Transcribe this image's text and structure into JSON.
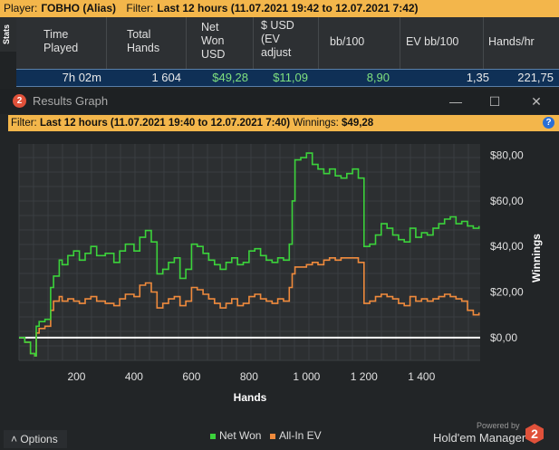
{
  "topbar": {
    "player_label": "Player:",
    "player_name": "ГОВНО (Alias)",
    "filter_label": "Filter:",
    "filter_value": "Last 12 hours (11.07.2021 19:42 to 12.07.2021 7:42)"
  },
  "stats": {
    "tab_label": "Stats",
    "headers": [
      "Time\nPlayed",
      "Total\nHands",
      "Net\nWon\nUSD",
      "$ USD\n(EV\nadjust",
      "bb/100",
      "EV bb/100",
      "Hands/hr"
    ],
    "row": [
      "7h 02m",
      "1 604",
      "$49,28",
      "$11,09",
      "8,90",
      "1,35",
      "221,75"
    ]
  },
  "graph_window": {
    "title": "Results Graph",
    "filter_label": "Filter:",
    "filter_value": "Last 12 hours (11.07.2021 19:40 to 12.07.2021 7:40)",
    "winnings_label": "Winnings:",
    "winnings_value": "$49,28",
    "minimize_icon": "minimize-icon",
    "maximize_icon": "maximize-icon",
    "close_icon": "close-icon",
    "help_icon": "help-icon"
  },
  "chart_data": {
    "type": "line",
    "xlabel": "Hands",
    "ylabel": "Winnings",
    "xlim": [
      0,
      1604
    ],
    "ylim": [
      -10,
      85
    ],
    "x_ticks": [
      200,
      400,
      600,
      800,
      1000,
      1200,
      1400
    ],
    "x_tick_labels": [
      "200",
      "400",
      "600",
      "800",
      "1 000",
      "1 200",
      "1 400"
    ],
    "y_ticks": [
      0,
      20,
      40,
      60,
      80
    ],
    "y_tick_labels": [
      "$0,00",
      "$20,00",
      "$40,00",
      "$60,00",
      "$80,00"
    ],
    "grid": true,
    "legend_position": "bottom",
    "series": [
      {
        "name": "Net Won",
        "color": "#3bd23b",
        "x": [
          0,
          20,
          40,
          55,
          60,
          70,
          90,
          110,
          120,
          140,
          150,
          170,
          190,
          210,
          230,
          250,
          270,
          300,
          330,
          350,
          370,
          400,
          420,
          440,
          460,
          480,
          500,
          520,
          540,
          560,
          580,
          600,
          620,
          640,
          660,
          680,
          700,
          720,
          740,
          760,
          780,
          800,
          820,
          840,
          860,
          880,
          900,
          920,
          940,
          950,
          960,
          980,
          1000,
          1020,
          1040,
          1060,
          1080,
          1100,
          1120,
          1140,
          1160,
          1180,
          1200,
          1220,
          1240,
          1260,
          1280,
          1300,
          1320,
          1340,
          1360,
          1380,
          1400,
          1420,
          1440,
          1460,
          1480,
          1500,
          1520,
          1540,
          1560,
          1580,
          1600
        ],
        "y": [
          0,
          -2,
          -7,
          -8,
          5,
          7,
          8,
          22,
          27,
          34,
          32,
          36,
          38,
          34,
          37,
          40,
          36,
          37,
          33,
          38,
          41,
          38,
          44,
          47,
          42,
          28,
          30,
          33,
          35,
          26,
          30,
          41,
          40,
          37,
          34,
          32,
          30,
          33,
          35,
          32,
          33,
          38,
          39,
          36,
          34,
          33,
          35,
          34,
          41,
          60,
          78,
          79,
          81,
          76,
          74,
          72,
          74,
          71,
          70,
          72,
          74,
          70,
          40,
          41,
          45,
          50,
          48,
          45,
          43,
          42,
          48,
          44,
          46,
          45,
          48,
          50,
          52,
          53,
          50,
          51,
          49,
          48,
          49
        ]
      },
      {
        "name": "All-In EV",
        "color": "#ef8a3c",
        "x": [
          0,
          20,
          40,
          55,
          60,
          70,
          90,
          110,
          120,
          140,
          150,
          170,
          190,
          210,
          230,
          250,
          270,
          300,
          330,
          350,
          370,
          400,
          420,
          440,
          460,
          480,
          500,
          520,
          540,
          560,
          580,
          600,
          620,
          640,
          660,
          680,
          700,
          720,
          740,
          760,
          780,
          800,
          820,
          840,
          860,
          880,
          900,
          920,
          940,
          950,
          960,
          980,
          1000,
          1020,
          1040,
          1060,
          1080,
          1100,
          1120,
          1140,
          1160,
          1180,
          1200,
          1220,
          1240,
          1260,
          1280,
          1300,
          1320,
          1340,
          1360,
          1380,
          1400,
          1420,
          1440,
          1460,
          1480,
          1500,
          1520,
          1540,
          1560,
          1580,
          1600
        ],
        "y": [
          0,
          -2,
          -7,
          -8,
          2,
          4,
          5,
          12,
          16,
          18,
          16,
          17,
          16,
          15,
          17,
          18,
          16,
          15,
          14,
          17,
          19,
          18,
          23,
          24,
          20,
          13,
          15,
          17,
          18,
          14,
          16,
          22,
          21,
          19,
          17,
          15,
          13,
          15,
          17,
          14,
          15,
          18,
          19,
          17,
          16,
          15,
          17,
          16,
          22,
          28,
          31,
          31,
          32,
          33,
          32,
          34,
          35,
          34,
          35,
          35,
          35,
          33,
          15,
          16,
          18,
          19,
          18,
          17,
          15,
          14,
          18,
          16,
          17,
          16,
          17,
          18,
          19,
          18,
          17,
          16,
          12,
          10,
          11
        ]
      }
    ]
  },
  "footer": {
    "options_label": "Options",
    "powered_by": "Powered by",
    "brand": "Hold'em Manager",
    "brand_icon": "hm2-logo-icon"
  }
}
